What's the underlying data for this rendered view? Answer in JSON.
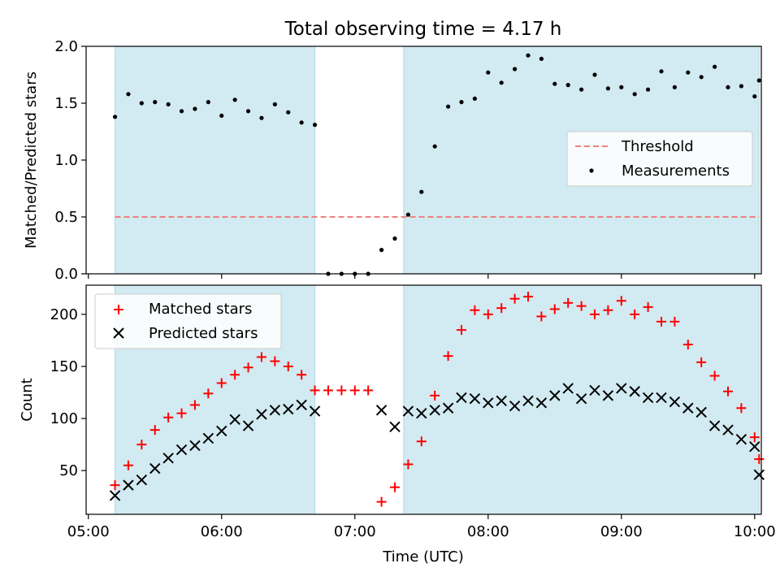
{
  "figure": {
    "title": "Total observing time = 4.17 h"
  },
  "colors": {
    "shade": "#add8e6",
    "threshold": "#f08080",
    "measurement": "#000000",
    "matched": "#ff0000",
    "predicted": "#000000"
  },
  "chart_data": [
    {
      "type": "scatter",
      "title": "Total observing time = 4.17 h",
      "xlabel": "",
      "ylabel": "Matched/Predicted stars",
      "ylim": [
        0.0,
        2.0
      ],
      "yticks": [
        0.0,
        0.5,
        1.0,
        1.5,
        2.0
      ],
      "ytick_labels": [
        "0.0",
        "0.5",
        "1.0",
        "1.5",
        "2.0"
      ],
      "xlim": [
        "04:59",
        "10:03"
      ],
      "shaded_spans": [
        [
          "05:12",
          "06:42"
        ],
        [
          "07:22",
          "10:02"
        ]
      ],
      "legend": {
        "placement": "center-right",
        "entries": [
          "Threshold",
          "Measurements"
        ]
      },
      "series": [
        {
          "name": "Threshold",
          "kind": "dashed-line",
          "x": [
            "05:12",
            "10:02"
          ],
          "y": [
            0.5,
            0.5
          ]
        },
        {
          "name": "Measurements",
          "kind": "dots",
          "x": [
            "05:12",
            "05:18",
            "05:24",
            "05:30",
            "05:36",
            "05:42",
            "05:48",
            "05:54",
            "06:00",
            "06:06",
            "06:12",
            "06:18",
            "06:24",
            "06:30",
            "06:36",
            "06:42",
            "06:48",
            "06:54",
            "07:00",
            "07:06",
            "07:12",
            "07:18",
            "07:24",
            "07:30",
            "07:36",
            "07:42",
            "07:48",
            "07:54",
            "08:00",
            "08:06",
            "08:12",
            "08:18",
            "08:24",
            "08:30",
            "08:36",
            "08:42",
            "08:48",
            "08:54",
            "09:00",
            "09:06",
            "09:12",
            "09:18",
            "09:24",
            "09:30",
            "09:36",
            "09:42",
            "09:48",
            "09:54",
            "10:00",
            "10:02"
          ],
          "y": [
            1.38,
            1.58,
            1.5,
            1.51,
            1.49,
            1.43,
            1.45,
            1.51,
            1.39,
            1.53,
            1.43,
            1.37,
            1.49,
            1.42,
            1.33,
            1.31,
            0.0,
            0.0,
            0.0,
            0.0,
            0.21,
            0.31,
            0.52,
            0.72,
            1.12,
            1.47,
            1.51,
            1.54,
            1.77,
            1.68,
            1.8,
            1.92,
            1.89,
            1.67,
            1.66,
            1.62,
            1.75,
            1.63,
            1.64,
            1.58,
            1.62,
            1.78,
            1.64,
            1.77,
            1.73,
            1.82,
            1.64,
            1.65,
            1.56,
            1.7
          ]
        }
      ]
    },
    {
      "type": "scatter",
      "xlabel": "Time (UTC)",
      "ylabel": "Count",
      "ylim": [
        8,
        228
      ],
      "yticks": [
        50,
        100,
        150,
        200
      ],
      "ytick_labels": [
        "50",
        "100",
        "150",
        "200"
      ],
      "xlim": [
        "04:59",
        "10:03"
      ],
      "xticks": [
        "05:00",
        "06:00",
        "07:00",
        "08:00",
        "09:00",
        "10:00"
      ],
      "xtick_labels": [
        "05:00",
        "06:00",
        "07:00",
        "08:00",
        "09:00",
        "10:00"
      ],
      "shaded_spans": [
        [
          "05:12",
          "06:42"
        ],
        [
          "07:22",
          "10:02"
        ]
      ],
      "legend": {
        "placement": "top-left",
        "entries": [
          "Matched stars",
          "Predicted stars"
        ]
      },
      "series": [
        {
          "name": "Matched stars",
          "marker": "+",
          "x": [
            "05:12",
            "05:18",
            "05:24",
            "05:30",
            "05:36",
            "05:42",
            "05:48",
            "05:54",
            "06:00",
            "06:06",
            "06:12",
            "06:18",
            "06:24",
            "06:30",
            "06:36",
            "06:42",
            "06:48",
            "06:54",
            "07:00",
            "07:06",
            "07:12",
            "07:18",
            "07:24",
            "07:30",
            "07:36",
            "07:42",
            "07:48",
            "07:54",
            "08:00",
            "08:06",
            "08:12",
            "08:18",
            "08:24",
            "08:30",
            "08:36",
            "08:42",
            "08:48",
            "08:54",
            "09:00",
            "09:06",
            "09:12",
            "09:18",
            "09:24",
            "09:30",
            "09:36",
            "09:42",
            "09:48",
            "09:54",
            "10:00",
            "10:02"
          ],
          "y": [
            36,
            55,
            75,
            89,
            101,
            105,
            113,
            124,
            134,
            142,
            149,
            159,
            155,
            150,
            142,
            127,
            127,
            127,
            127,
            127,
            20,
            34,
            56,
            78,
            122,
            160,
            185,
            204,
            200,
            206,
            215,
            217,
            198,
            205,
            211,
            208,
            200,
            204,
            213,
            200,
            207,
            193,
            193,
            171,
            154,
            141,
            126,
            110,
            82,
            61
          ]
        },
        {
          "name": "Predicted stars",
          "marker": "x",
          "x": [
            "05:12",
            "05:18",
            "05:24",
            "05:30",
            "05:36",
            "05:42",
            "05:48",
            "05:54",
            "06:00",
            "06:06",
            "06:12",
            "06:18",
            "06:24",
            "06:30",
            "06:36",
            "06:42",
            "07:12",
            "07:18",
            "07:24",
            "07:30",
            "07:36",
            "07:42",
            "07:48",
            "07:54",
            "08:00",
            "08:06",
            "08:12",
            "08:18",
            "08:24",
            "08:30",
            "08:36",
            "08:42",
            "08:48",
            "08:54",
            "09:00",
            "09:06",
            "09:12",
            "09:18",
            "09:24",
            "09:30",
            "09:36",
            "09:42",
            "09:48",
            "09:54",
            "10:00",
            "10:02"
          ],
          "y": [
            26,
            36,
            41,
            52,
            62,
            70,
            74,
            81,
            88,
            99,
            93,
            104,
            108,
            109,
            113,
            107,
            108,
            92,
            107,
            105,
            108,
            110,
            120,
            119,
            115,
            117,
            112,
            117,
            115,
            122,
            129,
            119,
            127,
            122,
            129,
            126,
            120,
            120,
            116,
            110,
            106,
            93,
            89,
            80,
            73,
            46
          ]
        }
      ]
    }
  ]
}
